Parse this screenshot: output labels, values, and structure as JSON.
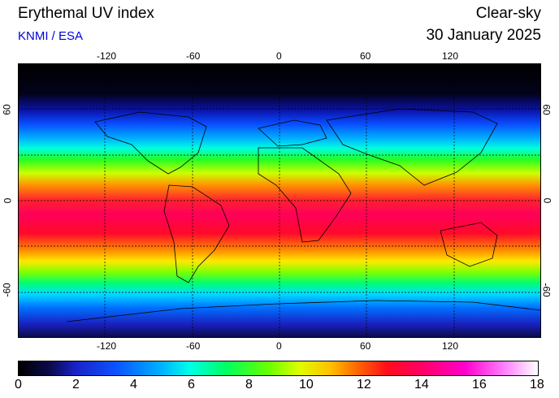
{
  "header": {
    "title": "Erythemal UV index",
    "credit": "KNMI / ESA",
    "mode": "Clear-sky",
    "date": "30 January 2025"
  },
  "map": {
    "lon_ticks": [
      "-120",
      "-60",
      "0",
      "60",
      "120"
    ],
    "lat_ticks_left": [
      "60",
      "0",
      "-60"
    ],
    "lat_ticks_right": [
      "60",
      "0",
      "-60"
    ]
  },
  "colorbar": {
    "labels": [
      "0",
      "2",
      "4",
      "6",
      "8",
      "10",
      "12",
      "14",
      "16",
      "18"
    ],
    "min": 0,
    "max": 18
  }
}
